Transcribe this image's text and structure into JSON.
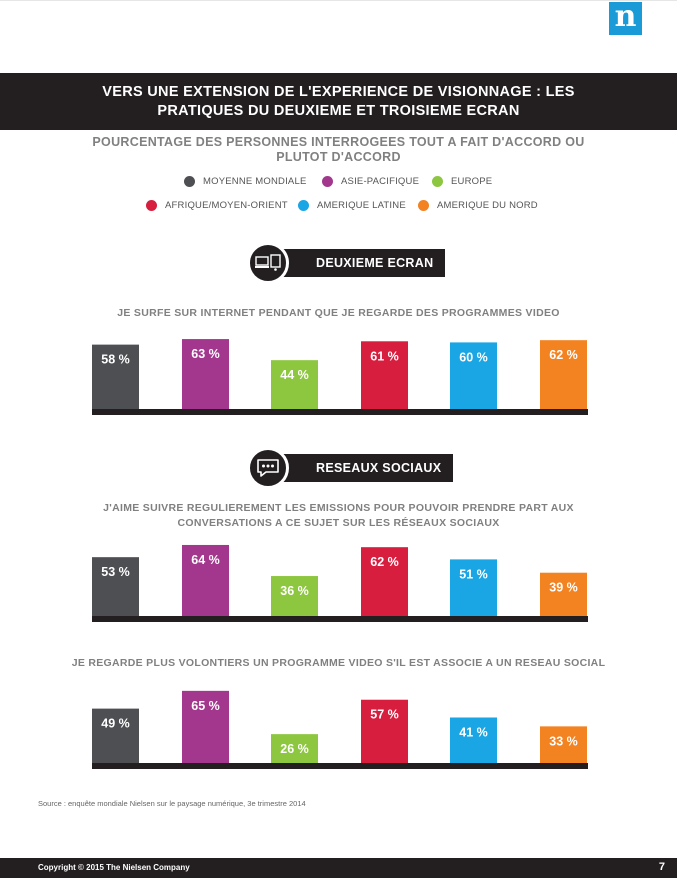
{
  "title": {
    "line1": "VERS UNE EXTENSION DE L'EXPERIENCE DE VISIONNAGE : LES",
    "line2": "PRATIQUES DU DEUXIEME ET TROISIEME ECRAN"
  },
  "subtitle": {
    "line1": "POURCENTAGE DES PERSONNES INTERROGEES TOUT A FAIT D'ACCORD OU",
    "line2": "PLUTOT D'ACCORD"
  },
  "legend": [
    {
      "label": "MOYENNE MONDIALE",
      "color": "#4e4f53"
    },
    {
      "label": "ASIE-PACIFIQUE",
      "color": "#a3378e"
    },
    {
      "label": "EUROPE",
      "color": "#8dc63f"
    },
    {
      "label": "AFRIQUE/MOYEN-ORIENT",
      "color": "#d81e3f"
    },
    {
      "label": "AMERIQUE LATINE",
      "color": "#1aa6e4"
    },
    {
      "label": "AMERIQUE DU NORD",
      "color": "#f38220"
    }
  ],
  "sections": {
    "second_screen": {
      "label": "DEUXIEME ECRAN",
      "icon": "devices-icon"
    },
    "social": {
      "label": "RESEAUX SOCIAUX",
      "icon": "chat-bubble-icon"
    }
  },
  "chart_data": [
    {
      "type": "bar",
      "title": "JE SURFE SUR INTERNET PENDANT QUE JE REGARDE DES PROGRAMMES VIDEO",
      "categories": [
        "MOYENNE MONDIALE",
        "ASIE-PACIFIQUE",
        "EUROPE",
        "AFRIQUE/MOYEN-ORIENT",
        "AMERIQUE LATINE",
        "AMERIQUE DU NORD"
      ],
      "values": [
        58,
        63,
        44,
        61,
        60,
        62
      ],
      "labels": [
        "58 %",
        "63 %",
        "44 %",
        "61 %",
        "60 %",
        "62 %"
      ],
      "colors": [
        "#4e4f53",
        "#a3378e",
        "#8dc63f",
        "#d81e3f",
        "#1aa6e4",
        "#f38220"
      ],
      "ylim": [
        0,
        100
      ]
    },
    {
      "type": "bar",
      "title": "J'AIME SUIVRE REGULIEREMENT LES EMISSIONS POUR POUVOIR PRENDRE PART AUX CONVERSATIONS A CE SUJET SUR LES RÉSEAUX SOCIAUX",
      "title_line1": "J'AIME SUIVRE REGULIEREMENT LES EMISSIONS POUR POUVOIR PRENDRE PART AUX",
      "title_line2": "CONVERSATIONS A CE SUJET SUR LES RÉSEAUX SOCIAUX",
      "categories": [
        "MOYENNE MONDIALE",
        "ASIE-PACIFIQUE",
        "EUROPE",
        "AFRIQUE/MOYEN-ORIENT",
        "AMERIQUE LATINE",
        "AMERIQUE DU NORD"
      ],
      "values": [
        53,
        64,
        36,
        62,
        51,
        39
      ],
      "labels": [
        "53 %",
        "64 %",
        "36 %",
        "62 %",
        "51 %",
        "39 %"
      ],
      "colors": [
        "#4e4f53",
        "#a3378e",
        "#8dc63f",
        "#d81e3f",
        "#1aa6e4",
        "#f38220"
      ],
      "ylim": [
        0,
        100
      ]
    },
    {
      "type": "bar",
      "title": "JE REGARDE PLUS VOLONTIERS UN PROGRAMME VIDEO S'IL EST ASSOCIE A UN RESEAU SOCIAL",
      "categories": [
        "MOYENNE MONDIALE",
        "ASIE-PACIFIQUE",
        "EUROPE",
        "AFRIQUE/MOYEN-ORIENT",
        "AMERIQUE LATINE",
        "AMERIQUE DU NORD"
      ],
      "values": [
        49,
        65,
        26,
        57,
        41,
        33
      ],
      "labels": [
        "49 %",
        "65 %",
        "26 %",
        "57 %",
        "41 %",
        "33 %"
      ],
      "colors": [
        "#4e4f53",
        "#a3378e",
        "#8dc63f",
        "#d81e3f",
        "#1aa6e4",
        "#f38220"
      ],
      "ylim": [
        0,
        100
      ]
    }
  ],
  "source": "Source : enquête mondiale Nielsen sur le paysage numérique, 3e trimestre 2014",
  "footer": {
    "copyright": "Copyright © 2015 The Nielsen Company",
    "page": "7"
  },
  "logo": {
    "text": "n",
    "color": "#1a9ad7"
  }
}
